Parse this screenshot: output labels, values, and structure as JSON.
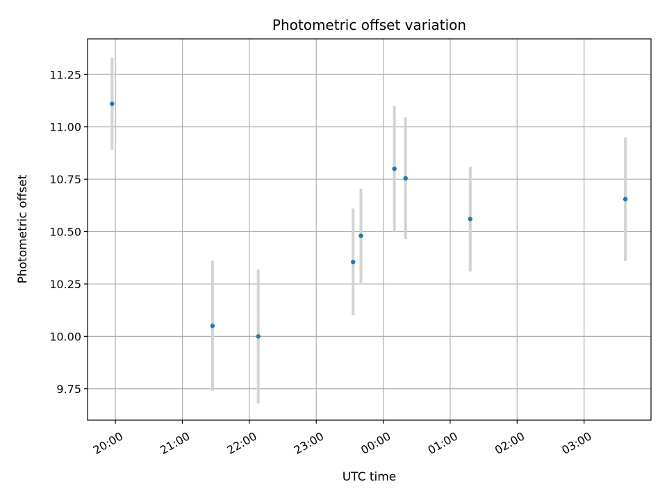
{
  "chart_data": {
    "type": "scatter",
    "title": "Photometric offset variation",
    "xlabel": "UTC time",
    "ylabel": "Photometric offset",
    "x_axis_kind": "time (HH:MM, UTC), crossing midnight",
    "xlim": [
      "19:35",
      "04:00"
    ],
    "ylim": [
      9.6,
      11.42
    ],
    "x_ticks": [
      "20:00",
      "21:00",
      "22:00",
      "23:00",
      "00:00",
      "01:00",
      "02:00",
      "03:00"
    ],
    "y_ticks": [
      "9.75",
      "10.00",
      "10.25",
      "10.50",
      "10.75",
      "11.00",
      "11.25"
    ],
    "y_tick_values": [
      9.75,
      10.0,
      10.25,
      10.5,
      10.75,
      11.0,
      11.25
    ],
    "grid": true,
    "series": [
      {
        "marker_color": "#1f77b4",
        "errorbar_color": "#d3d3d3",
        "points": [
          {
            "time": "19:57",
            "y": 11.11,
            "err": 0.22
          },
          {
            "time": "21:27",
            "y": 10.05,
            "err": 0.31
          },
          {
            "time": "22:08",
            "y": 10.0,
            "err": 0.32
          },
          {
            "time": "23:33",
            "y": 10.355,
            "err": 0.255
          },
          {
            "time": "23:40",
            "y": 10.48,
            "err": 0.225
          },
          {
            "time": "00:10",
            "y": 10.8,
            "err": 0.3
          },
          {
            "time": "00:20",
            "y": 10.755,
            "err": 0.29
          },
          {
            "time": "01:18",
            "y": 10.56,
            "err": 0.25
          },
          {
            "time": "03:37",
            "y": 10.655,
            "err": 0.295
          }
        ]
      }
    ]
  }
}
